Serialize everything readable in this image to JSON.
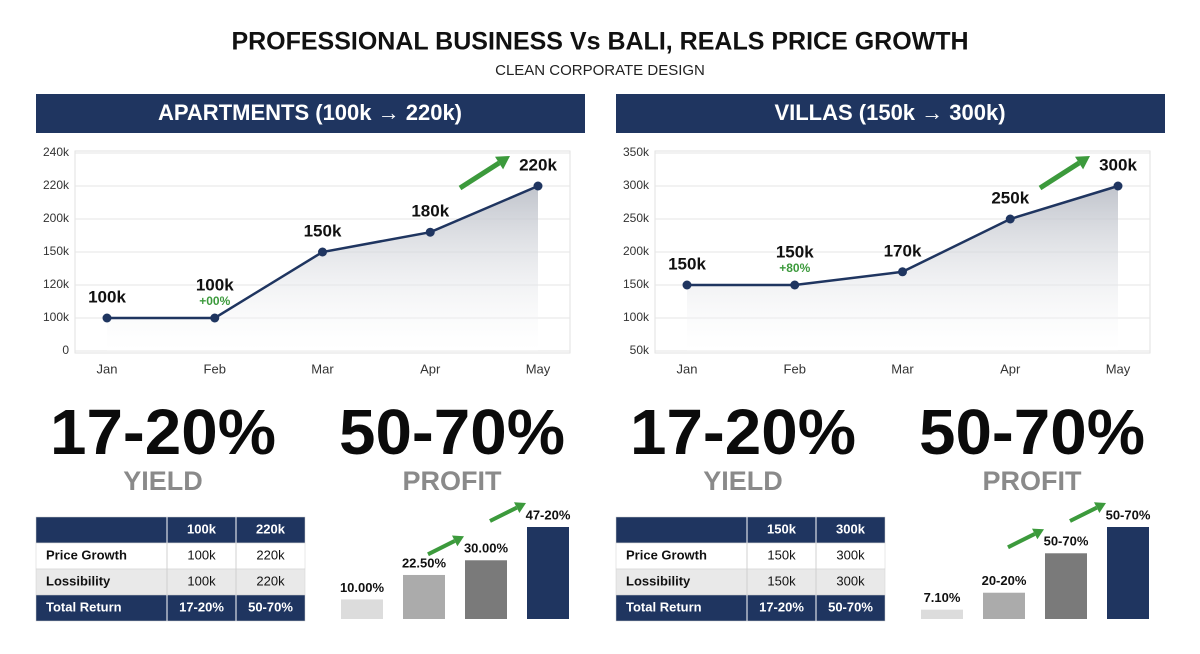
{
  "header": {
    "title": "PROFESSIONAL BUSINESS Vs BALI, REALS PRICE GROWTH",
    "subtitle": "CLEAN CORPORATE DESIGN"
  },
  "panels": [
    {
      "heading": "APARTMENTS (100k → 220k)",
      "stats": [
        {
          "value": "17-20%",
          "label": "YIELD"
        },
        {
          "value": "50-70%",
          "label": "PROFIT"
        }
      ],
      "table": {
        "columns": [
          "100k",
          "220k"
        ],
        "rows": [
          [
            "Price Growth",
            "100k",
            "220k"
          ],
          [
            "Lossibility",
            "100k",
            "220k"
          ],
          [
            "Total Return",
            "17-20%",
            "50-70%"
          ]
        ]
      }
    },
    {
      "heading": "VILLAS (150k → 300k)",
      "stats": [
        {
          "value": "17-20%",
          "label": "YIELD"
        },
        {
          "value": "50-70%",
          "label": "PROFIT"
        }
      ],
      "table": {
        "columns": [
          "150k",
          "300k"
        ],
        "rows": [
          [
            "Price Growth",
            "150k",
            "300k"
          ],
          [
            "Lossibility",
            "150k",
            "300k"
          ],
          [
            "Total Return",
            "17-20%",
            "50-70%"
          ]
        ]
      }
    }
  ],
  "chart_data": [
    {
      "type": "line",
      "categories": [
        "Jan",
        "Feb",
        "Mar",
        "Apr",
        "May"
      ],
      "series": [
        {
          "color": "#1f3560",
          "values": [
            100000,
            100000,
            150000,
            180000,
            220000
          ],
          "value_labels": [
            "100k",
            "100k",
            "150k",
            "180k",
            "220k"
          ]
        }
      ],
      "annotations": [
        null,
        "+00%",
        null,
        null,
        null
      ],
      "ylim": [
        0,
        240000
      ],
      "yticks": [
        0,
        {
          "value": 100000,
          "label": "100k"
        },
        {
          "value": 120000,
          "label": "120k"
        },
        {
          "value": 150000,
          "label": "150k"
        },
        {
          "value": 200000,
          "label": "200k"
        },
        {
          "value": 220000,
          "label": "220k"
        },
        {
          "value": 240000,
          "label": "240k"
        }
      ],
      "grid": true
    },
    {
      "type": "bar",
      "values": [
        10,
        22.5,
        30,
        47
      ],
      "value_labels": [
        "10.00%",
        "22.50%",
        "30.00%",
        "47-20%"
      ],
      "colors": [
        "#dcdcdc",
        "#ababab",
        "#7a7a7a",
        "#1f3560"
      ]
    },
    {
      "type": "line",
      "categories": [
        "Jan",
        "Feb",
        "Mar",
        "Apr",
        "May"
      ],
      "series": [
        {
          "color": "#1f3560",
          "values": [
            150000,
            150000,
            170000,
            250000,
            300000
          ],
          "value_labels": [
            "150k",
            "150k",
            "170k",
            "250k",
            "300k"
          ]
        }
      ],
      "annotations": [
        null,
        "+80%",
        null,
        null,
        null
      ],
      "ylim": [
        50000,
        350000
      ],
      "yticks": [
        {
          "value": 50000,
          "label": "50k"
        },
        {
          "value": 100000,
          "label": "100k"
        },
        {
          "value": 150000,
          "label": "150k"
        },
        {
          "value": 200000,
          "label": "200k"
        },
        {
          "value": 250000,
          "label": "250k"
        },
        {
          "value": 300000,
          "label": "300k"
        },
        {
          "value": 350000,
          "label": "350k"
        }
      ],
      "grid": true
    },
    {
      "type": "bar",
      "values": [
        7.1,
        20,
        50,
        70
      ],
      "value_labels": [
        "7.10%",
        "20-20%",
        "50-70%",
        "50-70%"
      ],
      "colors": [
        "#dcdcdc",
        "#ababab",
        "#7a7a7a",
        "#1f3560"
      ]
    }
  ]
}
